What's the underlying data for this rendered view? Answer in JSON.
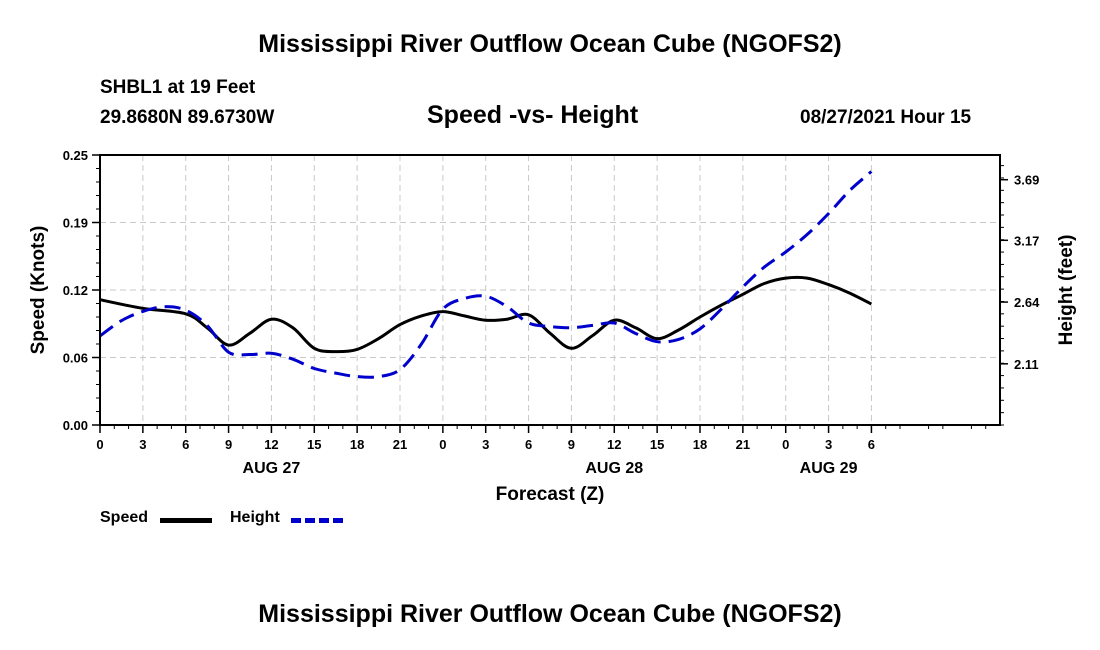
{
  "header": {
    "title": "Mississippi River Outflow Ocean Cube (NGOFS2)",
    "station": "SHBL1 at 19 Feet",
    "coordinates": "29.8680N  89.6730W",
    "subtitle": "Speed -vs- Height",
    "datetime": "08/27/2021 Hour 15"
  },
  "footer": {
    "title": "Mississippi River Outflow Ocean Cube (NGOFS2)"
  },
  "legend": {
    "speed_label": "Speed",
    "height_label": "Height"
  },
  "colors": {
    "speed": "#000000",
    "height": "#0000cc",
    "grid": "#c8c8c8"
  },
  "chart_data": {
    "type": "line",
    "title": "Speed -vs- Height",
    "xlabel": "Forecast (Z)",
    "ylabel_left": "Speed (Knots)",
    "ylabel_right": "Height (feet)",
    "x_range": [
      0,
      63
    ],
    "x_ticks": [
      {
        "x": 0,
        "label": "0"
      },
      {
        "x": 3,
        "label": "3"
      },
      {
        "x": 6,
        "label": "6"
      },
      {
        "x": 9,
        "label": "9"
      },
      {
        "x": 12,
        "label": "12"
      },
      {
        "x": 15,
        "label": "15"
      },
      {
        "x": 18,
        "label": "18"
      },
      {
        "x": 21,
        "label": "21"
      },
      {
        "x": 24,
        "label": "0"
      },
      {
        "x": 27,
        "label": "3"
      },
      {
        "x": 30,
        "label": "6"
      },
      {
        "x": 33,
        "label": "9"
      },
      {
        "x": 36,
        "label": "12"
      },
      {
        "x": 39,
        "label": "15"
      },
      {
        "x": 42,
        "label": "18"
      },
      {
        "x": 45,
        "label": "21"
      },
      {
        "x": 48,
        "label": "0"
      },
      {
        "x": 51,
        "label": "3"
      },
      {
        "x": 54,
        "label": "6"
      }
    ],
    "date_labels": [
      {
        "x": 12,
        "label": "AUG 27"
      },
      {
        "x": 36,
        "label": "AUG 28"
      },
      {
        "x": 51,
        "label": "AUG 29"
      }
    ],
    "y_left": {
      "range": [
        0,
        0.25
      ],
      "ticks": [
        "0.00",
        "0.06",
        "0.12",
        "0.19",
        "0.25"
      ],
      "tick_values": [
        0.0,
        0.0625,
        0.125,
        0.1875,
        0.25
      ]
    },
    "y_right": {
      "range": [
        1.585,
        3.902
      ],
      "ticks": [
        "2.11",
        "2.64",
        "3.17",
        "3.69"
      ],
      "tick_values": [
        2.11,
        2.64,
        3.17,
        3.69
      ]
    },
    "series": [
      {
        "name": "Speed",
        "axis": "left",
        "style": "solid",
        "points": [
          [
            0,
            0.116
          ],
          [
            3,
            0.108
          ],
          [
            6,
            0.103
          ],
          [
            7.5,
            0.09
          ],
          [
            9,
            0.074
          ],
          [
            10.5,
            0.085
          ],
          [
            12,
            0.098
          ],
          [
            13.5,
            0.09
          ],
          [
            15,
            0.071
          ],
          [
            16.5,
            0.068
          ],
          [
            18,
            0.07
          ],
          [
            19.5,
            0.08
          ],
          [
            21,
            0.093
          ],
          [
            22.5,
            0.101
          ],
          [
            24,
            0.105
          ],
          [
            25.5,
            0.101
          ],
          [
            27,
            0.097
          ],
          [
            28.5,
            0.098
          ],
          [
            30,
            0.102
          ],
          [
            31.5,
            0.085
          ],
          [
            33,
            0.071
          ],
          [
            34.5,
            0.083
          ],
          [
            36,
            0.097
          ],
          [
            37.5,
            0.09
          ],
          [
            39,
            0.08
          ],
          [
            40.5,
            0.088
          ],
          [
            42,
            0.1
          ],
          [
            43.5,
            0.111
          ],
          [
            45,
            0.121
          ],
          [
            46.5,
            0.131
          ],
          [
            48,
            0.136
          ],
          [
            49.5,
            0.136
          ],
          [
            51,
            0.13
          ],
          [
            52.5,
            0.122
          ],
          [
            54,
            0.112
          ]
        ]
      },
      {
        "name": "Height",
        "axis": "right",
        "style": "dashed",
        "points": [
          [
            0,
            2.35
          ],
          [
            1.5,
            2.48
          ],
          [
            3,
            2.56
          ],
          [
            4.5,
            2.6
          ],
          [
            6,
            2.57
          ],
          [
            7.5,
            2.44
          ],
          [
            9,
            2.21
          ],
          [
            10.5,
            2.19
          ],
          [
            12,
            2.2
          ],
          [
            13.5,
            2.15
          ],
          [
            15,
            2.07
          ],
          [
            16.5,
            2.03
          ],
          [
            18,
            2.0
          ],
          [
            19.5,
            2.0
          ],
          [
            21,
            2.06
          ],
          [
            22.5,
            2.28
          ],
          [
            24,
            2.58
          ],
          [
            25.5,
            2.67
          ],
          [
            27,
            2.69
          ],
          [
            28.5,
            2.6
          ],
          [
            30,
            2.46
          ],
          [
            31.5,
            2.43
          ],
          [
            33,
            2.42
          ],
          [
            34.5,
            2.44
          ],
          [
            36,
            2.46
          ],
          [
            37.5,
            2.37
          ],
          [
            39,
            2.3
          ],
          [
            40.5,
            2.32
          ],
          [
            42,
            2.41
          ],
          [
            43.5,
            2.58
          ],
          [
            45,
            2.77
          ],
          [
            46.5,
            2.94
          ],
          [
            48,
            3.07
          ],
          [
            49.5,
            3.22
          ],
          [
            51,
            3.4
          ],
          [
            52.5,
            3.6
          ],
          [
            54,
            3.76
          ]
        ]
      }
    ]
  }
}
